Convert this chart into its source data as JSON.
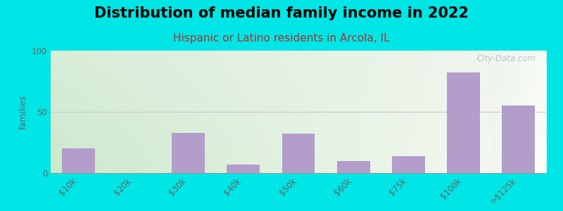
{
  "title": "Distribution of median family income in 2022",
  "subtitle": "Hispanic or Latino residents in Arcola, IL",
  "categories": [
    "$10k",
    "$20k",
    "$30k",
    "$40k",
    "$50k",
    "$60k",
    "$75k",
    "$100k",
    ">$125k"
  ],
  "values": [
    20,
    0,
    33,
    7,
    32,
    10,
    14,
    82,
    55
  ],
  "bar_color": "#b39dca",
  "ylabel": "families",
  "ylim": [
    0,
    100
  ],
  "yticks": [
    0,
    50,
    100
  ],
  "background_color": "#00e5e5",
  "gradient_colors_left": [
    "#d8edd8",
    "#f0f7e8"
  ],
  "gradient_colors_right": [
    "#eaf2e8",
    "#f8faf2"
  ],
  "last_bar_bg": "#eef4f0",
  "watermark": "City-Data.com",
  "title_fontsize": 15,
  "subtitle_fontsize": 11,
  "subtitle_color": "#aa3333"
}
